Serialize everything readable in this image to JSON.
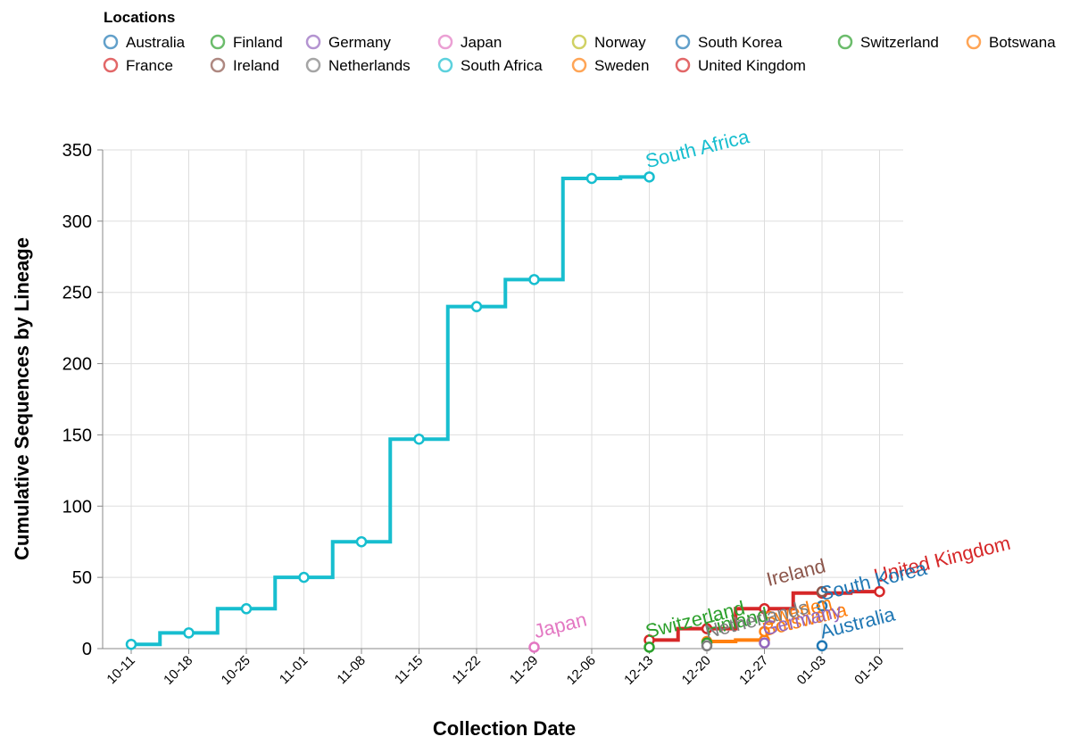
{
  "legend": {
    "title": "Locations",
    "items": [
      {
        "name": "Australia",
        "color": "#1f77b4"
      },
      {
        "name": "Finland",
        "color": "#2ca02c"
      },
      {
        "name": "Germany",
        "color": "#9467bd"
      },
      {
        "name": "Japan",
        "color": "#e377c2"
      },
      {
        "name": "Norway",
        "color": "#bcbd22"
      },
      {
        "name": "South Korea",
        "color": "#1f77b4"
      },
      {
        "name": "Switzerland",
        "color": "#2ca02c"
      },
      {
        "name": "Botswana",
        "color": "#ff7f0e"
      },
      {
        "name": "France",
        "color": "#d62728"
      },
      {
        "name": "Ireland",
        "color": "#8c564b"
      },
      {
        "name": "Netherlands",
        "color": "#7f7f7f"
      },
      {
        "name": "South Africa",
        "color": "#17becf"
      },
      {
        "name": "Sweden",
        "color": "#ff7f0e"
      },
      {
        "name": "United Kingdom",
        "color": "#d62728"
      }
    ]
  },
  "chart_data": {
    "type": "line",
    "step": true,
    "title": "",
    "xlabel": "Collection Date",
    "ylabel": "Cumulative Sequences by Lineage",
    "x_ticks": [
      "10-11",
      "10-18",
      "10-25",
      "11-01",
      "11-08",
      "11-15",
      "11-22",
      "11-29",
      "12-06",
      "12-13",
      "12-20",
      "12-27",
      "01-03",
      "01-10"
    ],
    "x_range_weeks": [
      -0.2,
      13.5
    ],
    "y_ticks": [
      0,
      50,
      100,
      150,
      200,
      250,
      300,
      350
    ],
    "ylim": [
      0,
      350
    ],
    "grid": true,
    "series": [
      {
        "name": "South Africa",
        "color": "#17becf",
        "label": "South Africa",
        "points": [
          [
            0,
            3
          ],
          [
            1,
            11
          ],
          [
            2,
            28
          ],
          [
            3,
            50
          ],
          [
            4,
            75
          ],
          [
            5,
            147
          ],
          [
            6,
            240
          ],
          [
            7,
            259
          ],
          [
            8,
            330
          ],
          [
            9,
            331
          ]
        ]
      },
      {
        "name": "United Kingdom",
        "color": "#d62728",
        "label": "United Kingdom",
        "points": [
          [
            9,
            6
          ],
          [
            10,
            14
          ],
          [
            11,
            28
          ],
          [
            12,
            39
          ],
          [
            13,
            40
          ]
        ]
      },
      {
        "name": "Botswana",
        "color": "#ff7f0e",
        "label": "Botswana",
        "points": [
          [
            10,
            5
          ],
          [
            11,
            6
          ]
        ]
      },
      {
        "name": "Sweden",
        "color": "#ff7f0e",
        "label": "Sweden",
        "points": [
          [
            11,
            12
          ]
        ]
      },
      {
        "name": "Japan",
        "color": "#e377c2",
        "label": "Japan",
        "points": [
          [
            7,
            1
          ]
        ]
      },
      {
        "name": "Switzerland",
        "color": "#2ca02c",
        "label": "Switzerland",
        "points": [
          [
            9,
            1
          ]
        ]
      },
      {
        "name": "Finland",
        "color": "#2ca02c",
        "label": "Finland",
        "points": [
          [
            10,
            4
          ]
        ]
      },
      {
        "name": "Netherlands",
        "color": "#7f7f7f",
        "label": "Netherlands",
        "points": [
          [
            10,
            2
          ]
        ]
      },
      {
        "name": "Germany",
        "color": "#9467bd",
        "label": "Germany",
        "points": [
          [
            11,
            4
          ]
        ]
      },
      {
        "name": "Ireland",
        "color": "#8c564b",
        "label": "Ireland",
        "points": [
          [
            12,
            40
          ]
        ]
      },
      {
        "name": "South Korea",
        "color": "#1f77b4",
        "label": "South Korea",
        "points": [
          [
            12,
            30
          ]
        ]
      },
      {
        "name": "Australia",
        "color": "#1f77b4",
        "label": "Australia",
        "points": [
          [
            12,
            2
          ]
        ]
      }
    ]
  }
}
